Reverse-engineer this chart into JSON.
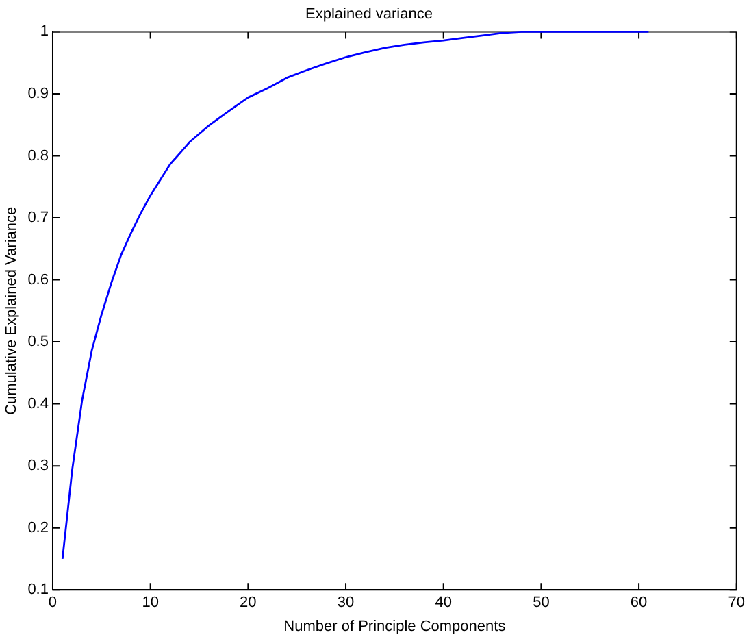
{
  "chart_data": {
    "type": "line",
    "title": "Explained variance",
    "xlabel": "Number of Principle Components",
    "ylabel": "Cumulative Explained Variance",
    "x": [
      1,
      2,
      3,
      4,
      5,
      6,
      7,
      8,
      9,
      10,
      12,
      14,
      16,
      18,
      20,
      22,
      24,
      26,
      28,
      30,
      32,
      34,
      36,
      38,
      40,
      42,
      44,
      46,
      48,
      50,
      55,
      61
    ],
    "series": [
      {
        "color": "#0000ff",
        "values": [
          0.15,
          0.294,
          0.405,
          0.486,
          0.544,
          0.595,
          0.64,
          0.675,
          0.707,
          0.736,
          0.786,
          0.822,
          0.849,
          0.872,
          0.894,
          0.909,
          0.926,
          0.938,
          0.949,
          0.959,
          0.967,
          0.974,
          0.979,
          0.983,
          0.986,
          0.99,
          0.994,
          0.998,
          1,
          1,
          1,
          1
        ]
      }
    ],
    "xlim": [
      0,
      70
    ],
    "xticks": [
      0,
      10,
      20,
      30,
      40,
      50,
      60,
      70
    ],
    "ylim": [
      0.1,
      1
    ],
    "yticks": [
      0.1,
      0.2,
      0.3,
      0.4,
      0.5,
      0.6,
      0.7,
      0.8,
      0.9,
      1
    ],
    "grid": false,
    "legend": false,
    "marker": "none",
    "line_style": "solid"
  }
}
